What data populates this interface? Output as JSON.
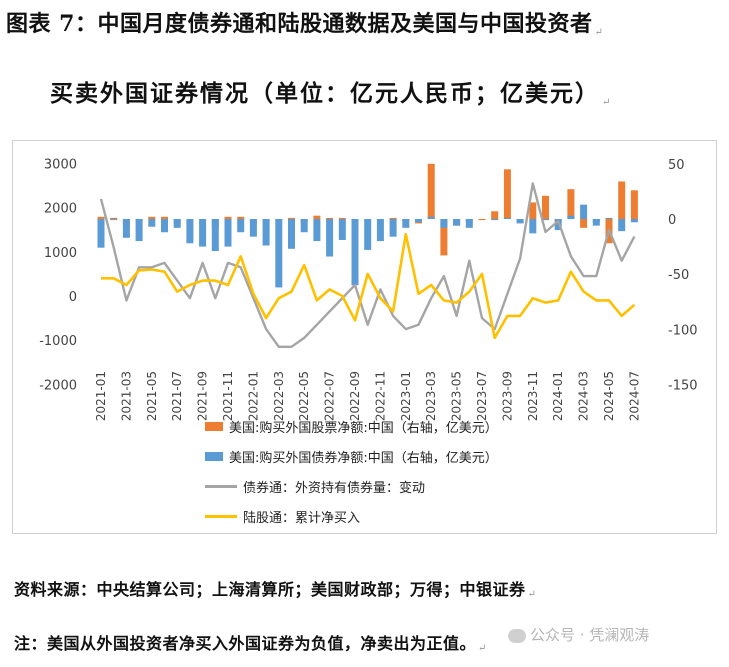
{
  "figure": {
    "title_line1": "图表 7：中国月度债券通和陆股通数据及美国与中国投资者",
    "title_line2": "买卖外国证券情况（单位：亿元人民币；亿美元）",
    "paragraph_mark": "↵",
    "source": "资料来源：中央结算公司；上海清算所；美国财政部；万得；中银证券",
    "note": "注：美国从外国投资者净买入外国证券为负值，净卖出为正值。",
    "watermark": "公众号 · 凭澜观涛"
  },
  "colors": {
    "orange": "#ED7D31",
    "blue": "#5B9BD5",
    "gray": "#A5A5A5",
    "yellow": "#FFC000"
  },
  "chart_data": {
    "type": "bar",
    "months": [
      "2021-01",
      "2021-02",
      "2021-03",
      "2021-04",
      "2021-05",
      "2021-06",
      "2021-07",
      "2021-08",
      "2021-09",
      "2021-10",
      "2021-11",
      "2021-12",
      "2022-01",
      "2022-02",
      "2022-03",
      "2022-04",
      "2022-05",
      "2022-06",
      "2022-07",
      "2022-08",
      "2022-09",
      "2022-10",
      "2022-11",
      "2022-12",
      "2023-01",
      "2023-02",
      "2023-03",
      "2023-04",
      "2023-05",
      "2023-06",
      "2023-07",
      "2023-08",
      "2023-09",
      "2023-10",
      "2023-11",
      "2023-12",
      "2024-01",
      "2024-02",
      "2024-03",
      "2024-04",
      "2024-05",
      "2024-06",
      "2024-07"
    ],
    "x_tick_labels": [
      "2021-01",
      "2021-03",
      "2021-05",
      "2021-07",
      "2021-09",
      "2021-11",
      "2022-01",
      "2022-03",
      "2022-05",
      "2022-07",
      "2022-09",
      "2022-11",
      "2023-01",
      "2023-03",
      "2023-05",
      "2023-07",
      "2023-09",
      "2023-11",
      "2024-01",
      "2024-03",
      "2024-05",
      "2024-07"
    ],
    "y_left": {
      "ticks": [
        "3000",
        "2000",
        "1000",
        "0",
        "-1000",
        "-2000"
      ],
      "min": -2000,
      "max": 3000
    },
    "y_right": {
      "ticks": [
        "50",
        "0",
        "-50",
        "-100",
        "-150"
      ],
      "min": -150,
      "max": 50
    },
    "series": [
      {
        "name": "美国:购买外国股票净额:中国（右轴，亿美元）",
        "type": "bar",
        "axis": "right",
        "color_key": "orange",
        "values": [
          2,
          -1,
          -6,
          -2,
          2,
          2,
          -4,
          -1,
          -1,
          -8,
          2,
          2,
          -4,
          -2,
          -1,
          1,
          -3,
          3,
          1,
          1,
          -1,
          0,
          -1,
          1,
          -2,
          -4,
          50,
          -33,
          -6,
          -3,
          -1,
          7,
          45,
          -3,
          15,
          21,
          -2,
          27,
          -8,
          -3,
          -22,
          34,
          26
        ]
      },
      {
        "name": "美国:购买外国债券净额:中国（右轴，亿美元）",
        "type": "bar",
        "axis": "right",
        "color_key": "blue",
        "values": [
          -26,
          1,
          -17,
          -20,
          -7,
          -12,
          -8,
          -22,
          -25,
          -29,
          -25,
          -12,
          -16,
          -24,
          -62,
          -27,
          -12,
          -20,
          -34,
          -19,
          -60,
          -28,
          -20,
          -16,
          -8,
          -3,
          2,
          -8,
          -6,
          -8,
          0,
          -1,
          1,
          -4,
          -13,
          -1,
          -10,
          3,
          13,
          -6,
          1,
          -11,
          -3
        ]
      },
      {
        "name": "债券通：外资持有债券量：变动",
        "type": "line",
        "axis": "left",
        "color_key": "gray",
        "values": [
          2200,
          1100,
          -100,
          650,
          650,
          750,
          350,
          -50,
          750,
          -50,
          750,
          650,
          -50,
          -750,
          -1150,
          -1150,
          -950,
          -650,
          -350,
          -50,
          250,
          -650,
          150,
          -450,
          -750,
          -650,
          -50,
          450,
          -450,
          800,
          -500,
          -750,
          50,
          850,
          2550,
          1450,
          1700,
          900,
          450,
          450,
          1500,
          800,
          1350
        ]
      },
      {
        "name": "陆股通：累计净买入",
        "type": "line",
        "axis": "left",
        "color_key": "yellow",
        "values": [
          400,
          400,
          250,
          580,
          600,
          550,
          100,
          250,
          350,
          350,
          250,
          900,
          50,
          -500,
          -50,
          100,
          700,
          -100,
          150,
          0,
          -550,
          500,
          -50,
          -350,
          1400,
          50,
          250,
          -100,
          -150,
          100,
          500,
          -950,
          -450,
          -450,
          -50,
          -150,
          -100,
          550,
          100,
          -100,
          -100,
          -450,
          -200
        ]
      }
    ],
    "legend_position": "bottom-left-inside"
  }
}
